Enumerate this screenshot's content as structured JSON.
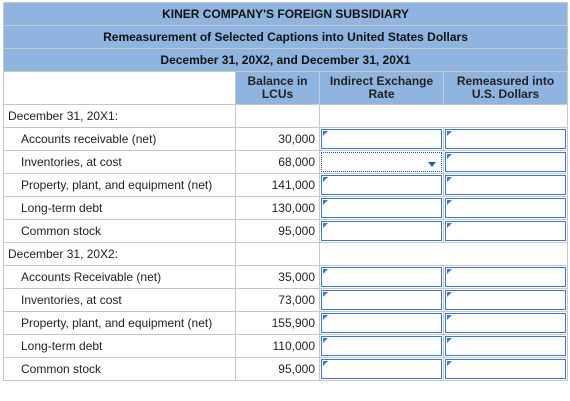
{
  "title": "KINER COMPANY'S FOREIGN SUBSIDIARY",
  "subtitle": "Remeasurement of Selected Captions into United States Dollars",
  "dates": "December 31, 20X2, and December 31, 20X1",
  "columns": {
    "balance": [
      "Balance in",
      "LCUs"
    ],
    "rate": [
      "Indirect Exchange",
      "Rate"
    ],
    "remeasured": [
      "Remeasured into",
      "U.S. Dollars"
    ]
  },
  "sections": [
    {
      "label": "December 31, 20X1:",
      "rows": [
        {
          "caption": "Accounts receivable (net)",
          "balance": "30,000"
        },
        {
          "caption": "Inventories, at cost",
          "balance": "68,000",
          "rate_is_dropdown": true
        },
        {
          "caption": "Property, plant, and equipment (net)",
          "balance": "141,000"
        },
        {
          "caption": "Long-term debt",
          "balance": "130,000"
        },
        {
          "caption": "Common stock",
          "balance": "95,000"
        }
      ]
    },
    {
      "label": "December 31, 20X2:",
      "rows": [
        {
          "caption": "Accounts Receivable (net)",
          "balance": "35,000"
        },
        {
          "caption": "Inventories, at cost",
          "balance": "73,000"
        },
        {
          "caption": "Property, plant, and equipment (net)",
          "balance": "155,900"
        },
        {
          "caption": "Long-term debt",
          "balance": "110,000"
        },
        {
          "caption": "Common stock",
          "balance": "95,000"
        }
      ]
    }
  ],
  "colors": {
    "header_bg": "#8fb4e0",
    "input_border": "#3a78c9",
    "grid": "#c7c7c7"
  }
}
